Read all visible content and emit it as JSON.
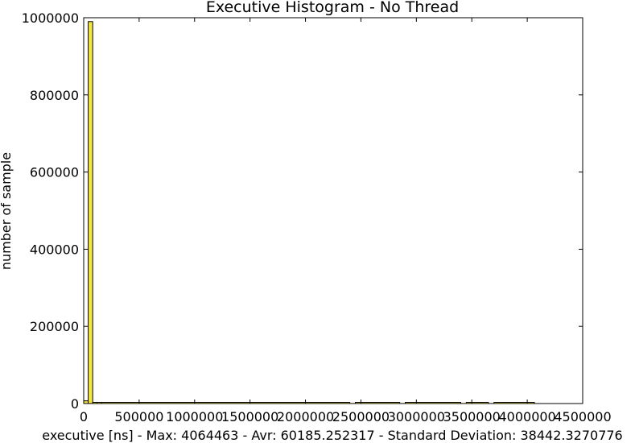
{
  "chart_data": {
    "type": "bar",
    "title": "Executive Histogram - No Thread",
    "xlabel": "executive [ns] - Max: 4064463 - Avr: 60185.252317 - Standard Deviation: 38442.3270776",
    "ylabel": "number of sample",
    "xlim": [
      0,
      4500000
    ],
    "ylim": [
      0,
      1000000
    ],
    "grid": false,
    "bin_width": 40600,
    "x_ticks": [
      0,
      500000,
      1000000,
      1500000,
      2000000,
      2500000,
      3000000,
      3500000,
      4000000,
      4500000
    ],
    "x_tick_labels": [
      "0",
      "500000",
      "1000000",
      "1500000",
      "2000000",
      "2500000",
      "3000000",
      "3500000",
      "4000000",
      "4500000"
    ],
    "y_ticks": [
      0,
      200000,
      400000,
      600000,
      800000,
      1000000
    ],
    "y_tick_labels": [
      "0",
      "200000",
      "400000",
      "600000",
      "800000",
      "1000000"
    ],
    "bar_color": "#f5e642",
    "edge_color": "#000000",
    "bins": [
      {
        "x0": 0,
        "x1": 40600,
        "count": 7000
      },
      {
        "x0": 40600,
        "x1": 81200,
        "count": 990000
      },
      {
        "x0": 81200,
        "x1": 121800,
        "count": 3000
      },
      {
        "x0": 121800,
        "x1": 162400,
        "count": 800
      },
      {
        "x0": 162400,
        "x1": 2400000,
        "count": 200
      },
      {
        "x0": 2450000,
        "x1": 2850000,
        "count": 100
      },
      {
        "x0": 2900000,
        "x1": 3400000,
        "count": 80
      },
      {
        "x0": 3450000,
        "x1": 3650000,
        "count": 60
      },
      {
        "x0": 3700000,
        "x1": 4064463,
        "count": 50
      }
    ]
  }
}
